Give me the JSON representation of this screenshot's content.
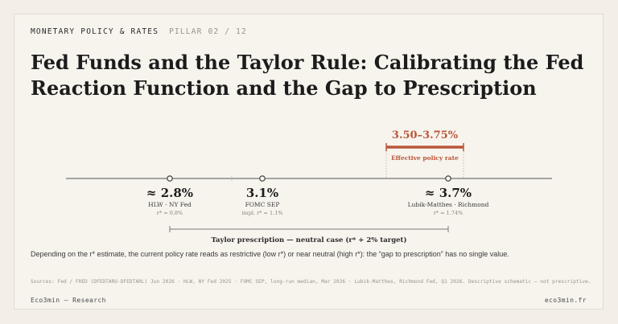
{
  "header": {
    "kicker": "MONETARY POLICY & RATES",
    "pillar": "PILLAR 02 / 12",
    "title": "Fed Funds and the Taylor Rule: Calibrating the Fed Reaction Function and the Gap to Prescription"
  },
  "policy_rate": {
    "value": "3.50–3.75%",
    "label": "Effective policy rate",
    "color": "#b9563a"
  },
  "estimates": [
    {
      "value": "≈ 2.8%",
      "source": "HLW · NY Fed",
      "detail": "r* = 0.8%"
    },
    {
      "value": "3.1%",
      "source": "FOMC SEP",
      "detail": "impl. r* = 1.1%"
    },
    {
      "value": "≈ 3.7%",
      "source": "Lubik-Matthes · Richmond",
      "detail": "r* = 1.74%"
    }
  ],
  "prescription": {
    "label": "Taylor prescription — neutral case (r* + 2% target)"
  },
  "note": "Depending on the r* estimate, the current policy rate reads as restrictive (low r*) or near neutral (high r*): the “gap to prescription” has no single value.",
  "sources": "Sources: Fed / FRED (DFEDTARU-DFEDTARL) Jun 2026 · HLW, NY Fed 2025 · FOMC SEP, long-run median, Mar 2026 · Lubik-Matthes, Richmond Fed, Q1 2026. Descriptive schematic — not prescriptive.",
  "footer": {
    "left": "Eco3min — Research",
    "right": "eco3min.fr"
  }
}
